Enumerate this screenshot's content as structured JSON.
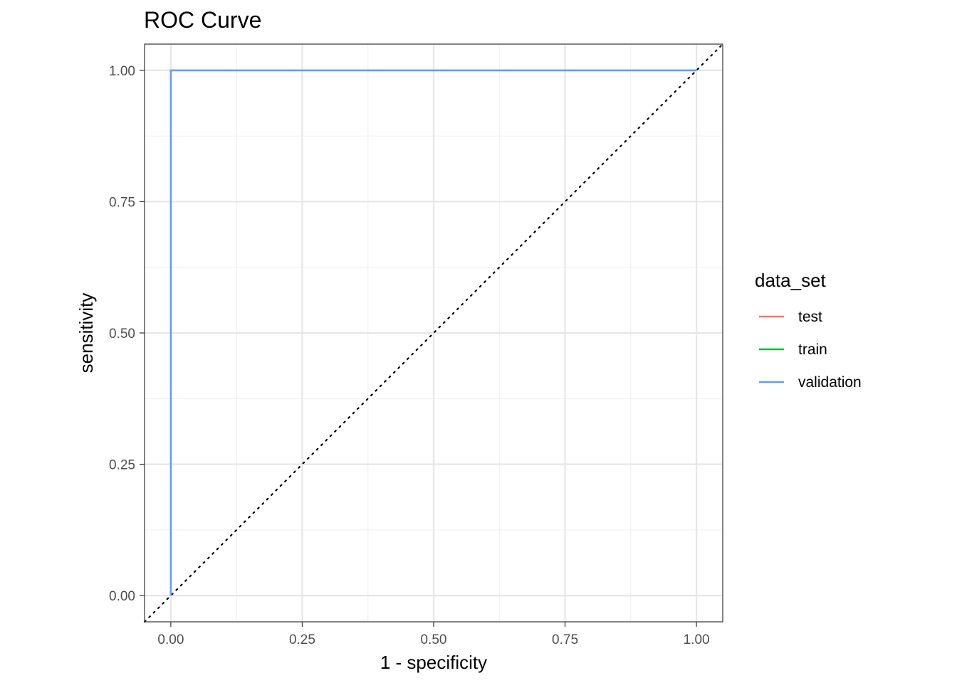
{
  "chart_data": {
    "type": "line",
    "title": "ROC Curve",
    "xlabel": "1 - specificity",
    "ylabel": "sensitivity",
    "xlim": [
      -0.05,
      1.05
    ],
    "ylim": [
      -0.05,
      1.05
    ],
    "x_ticks": [
      "0.00",
      "0.25",
      "0.50",
      "0.75",
      "1.00"
    ],
    "y_ticks": [
      "0.00",
      "0.25",
      "0.50",
      "0.75",
      "1.00"
    ],
    "grid": true,
    "legend": {
      "title": "data_set",
      "placement": "right",
      "entries": [
        {
          "label": "test",
          "color": "#F8766D"
        },
        {
          "label": "train",
          "color": "#00BA38"
        },
        {
          "label": "validation",
          "color": "#619CFF"
        }
      ]
    },
    "reference_line": {
      "style": "dotted",
      "color": "#000000",
      "points": [
        [
          0,
          0
        ],
        [
          1,
          1
        ]
      ]
    },
    "series": [
      {
        "name": "validation",
        "color": "#619CFF",
        "points": [
          [
            0,
            0
          ],
          [
            0,
            1
          ],
          [
            1,
            1
          ]
        ]
      }
    ]
  }
}
